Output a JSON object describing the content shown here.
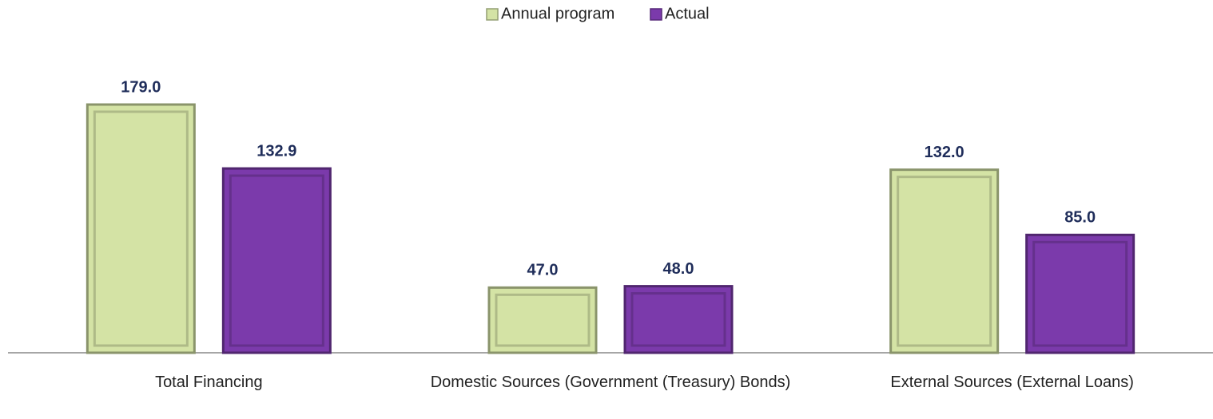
{
  "chart_data": {
    "type": "bar",
    "categories": [
      "Total Financing",
      "Domestic Sources (Government (Treasury) Bonds)",
      "External Sources (External Loans)"
    ],
    "series": [
      {
        "name": "Annual program",
        "color": "#d4e3a5",
        "values": [
          179,
          47,
          132
        ],
        "value_labels": [
          "179.0",
          "47.0",
          "132.0"
        ]
      },
      {
        "name": "Actual",
        "color": "#7b3aab",
        "values": [
          132.9,
          48,
          85
        ],
        "value_labels": [
          "132.9",
          "48.0",
          "85.0"
        ]
      }
    ],
    "legend": "top"
  }
}
